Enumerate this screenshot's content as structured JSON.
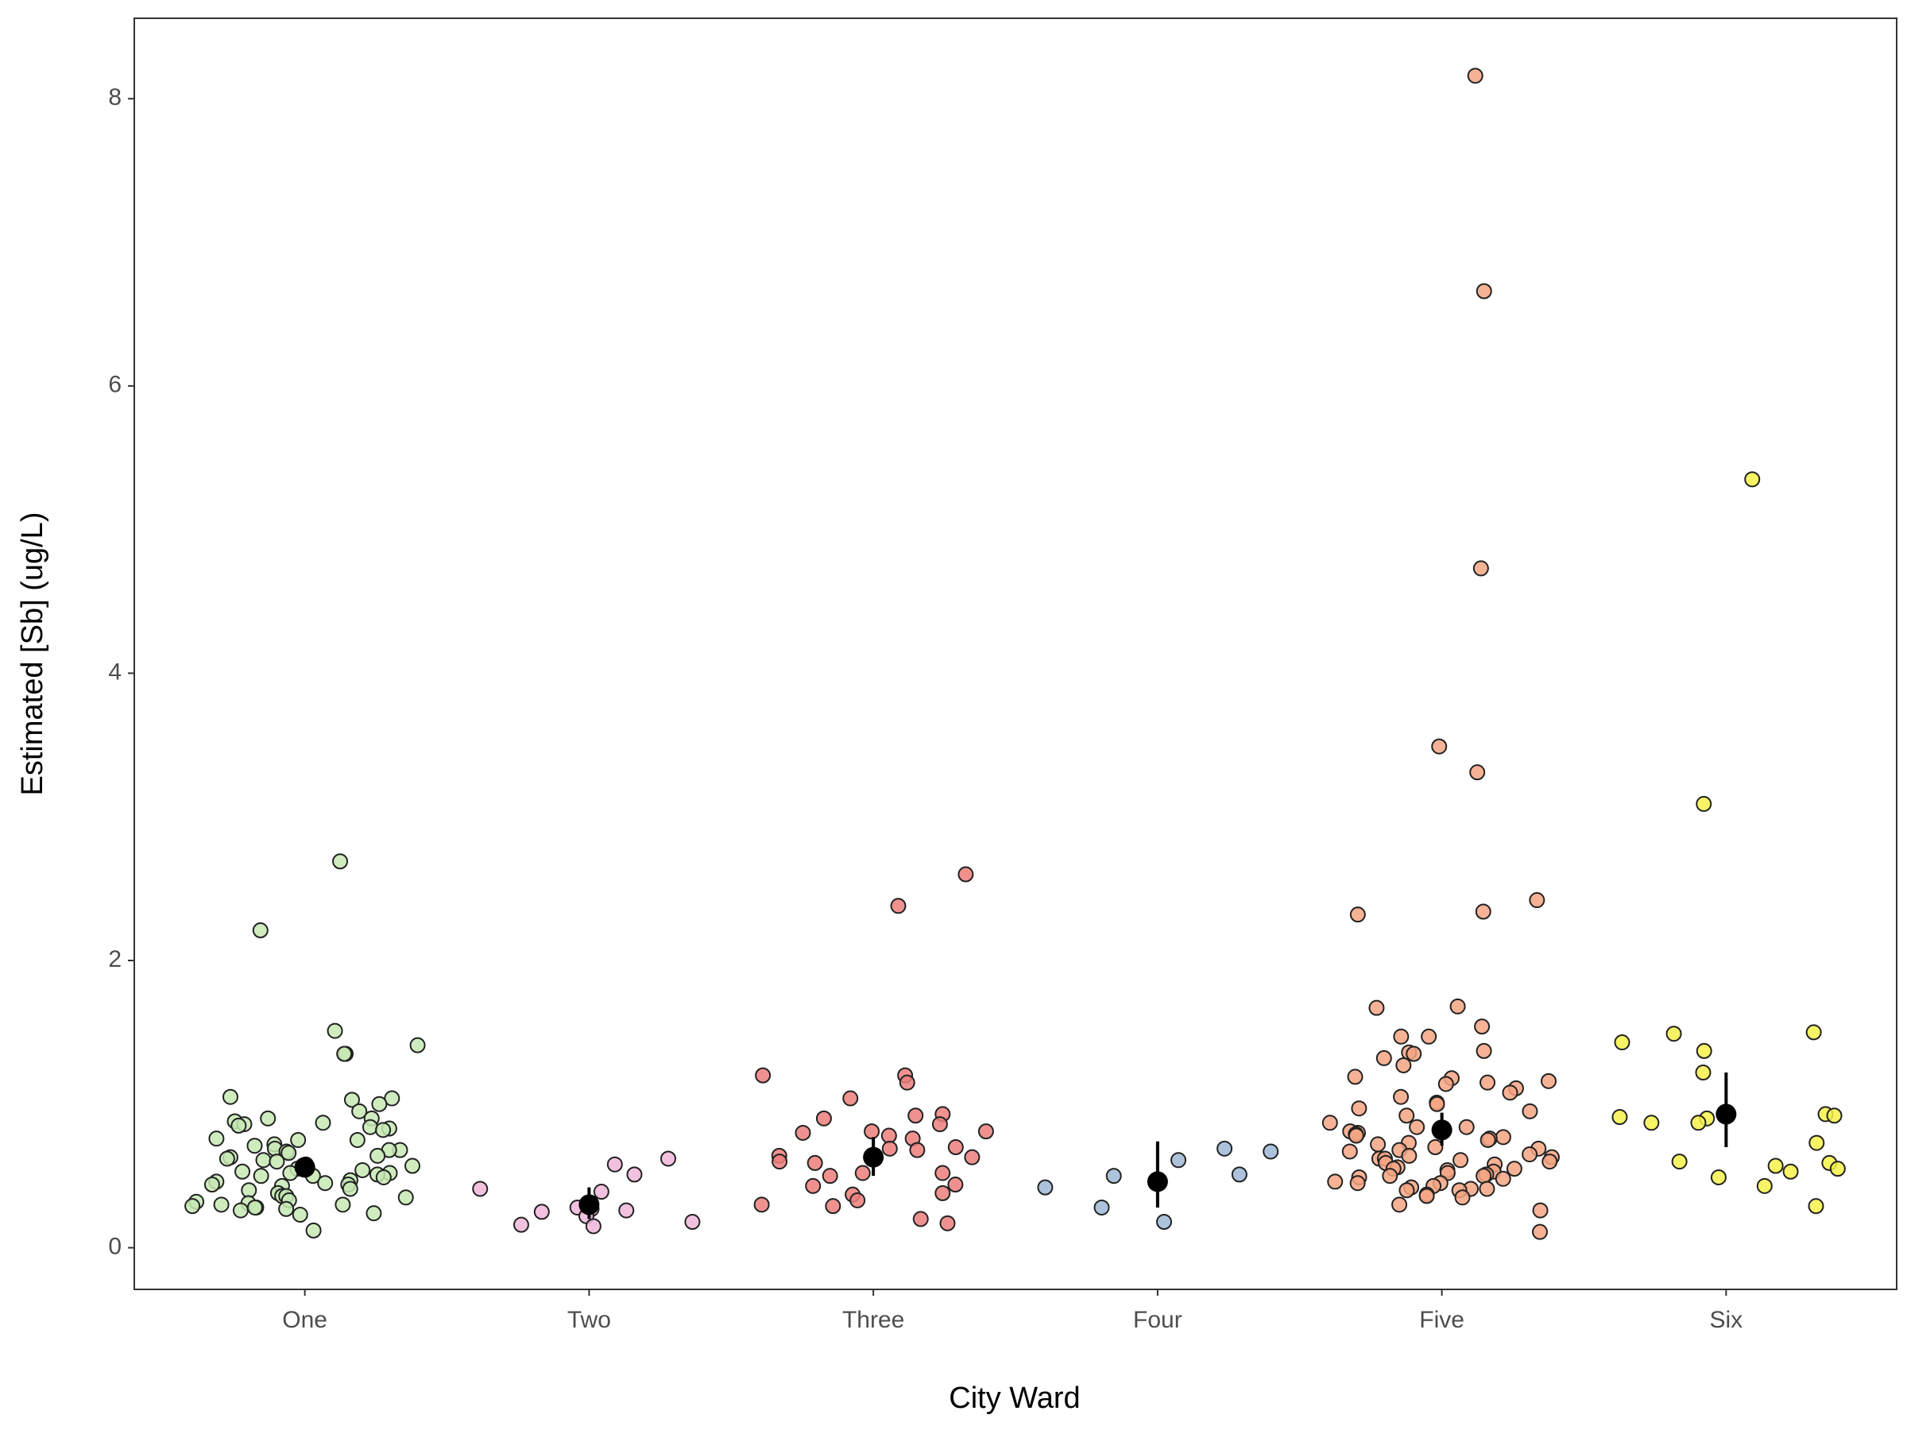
{
  "chart_data": {
    "type": "strip",
    "x_label": "City Ward",
    "y_label": "Estimated [Sb] (ug/L)",
    "categories": [
      "One",
      "Two",
      "Three",
      "Four",
      "Five",
      "Six"
    ],
    "colors": [
      "#c7e9b4",
      "#f1b6da",
      "#ec7f7b",
      "#9fb9d6",
      "#f4a582",
      "#f6f24a"
    ],
    "points": [
      [
        2.69,
        2.21,
        1.51,
        1.41,
        1.35,
        1.35,
        1.05,
        1.04,
        1.03,
        1.0,
        0.95,
        0.9,
        0.9,
        0.88,
        0.87,
        0.86,
        0.85,
        0.84,
        0.83,
        0.82,
        0.76,
        0.75,
        0.75,
        0.72,
        0.71,
        0.69,
        0.68,
        0.68,
        0.67,
        0.66,
        0.64,
        0.63,
        0.62,
        0.61,
        0.6,
        0.58,
        0.57,
        0.55,
        0.54,
        0.53,
        0.52,
        0.52,
        0.51,
        0.5,
        0.5,
        0.49,
        0.47,
        0.46,
        0.45,
        0.44,
        0.44,
        0.43,
        0.41,
        0.4,
        0.38,
        0.36,
        0.36,
        0.35,
        0.33,
        0.32,
        0.31,
        0.3,
        0.3,
        0.29,
        0.28,
        0.28,
        0.27,
        0.26,
        0.24,
        0.23,
        0.12
      ],
      [
        0.62,
        0.58,
        0.51,
        0.41,
        0.39,
        0.28,
        0.27,
        0.26,
        0.25,
        0.22,
        0.18,
        0.16,
        0.15
      ],
      [
        2.6,
        2.38,
        1.2,
        1.2,
        1.15,
        1.04,
        0.93,
        0.92,
        0.9,
        0.86,
        0.81,
        0.81,
        0.8,
        0.78,
        0.76,
        0.7,
        0.69,
        0.68,
        0.64,
        0.63,
        0.6,
        0.59,
        0.52,
        0.52,
        0.5,
        0.44,
        0.43,
        0.38,
        0.37,
        0.33,
        0.3,
        0.29,
        0.2,
        0.17
      ],
      [
        0.69,
        0.67,
        0.61,
        0.51,
        0.5,
        0.42,
        0.28,
        0.18
      ],
      [
        8.16,
        6.66,
        4.73,
        3.49,
        3.31,
        2.42,
        2.34,
        2.32,
        1.68,
        1.67,
        1.54,
        1.47,
        1.47,
        1.37,
        1.36,
        1.35,
        1.32,
        1.27,
        1.19,
        1.18,
        1.16,
        1.15,
        1.14,
        1.11,
        1.08,
        1.05,
        1.01,
        1.0,
        0.97,
        0.95,
        0.92,
        0.87,
        0.84,
        0.84,
        0.81,
        0.8,
        0.79,
        0.78,
        0.77,
        0.76,
        0.75,
        0.73,
        0.72,
        0.7,
        0.69,
        0.68,
        0.67,
        0.65,
        0.64,
        0.63,
        0.62,
        0.62,
        0.61,
        0.6,
        0.59,
        0.58,
        0.56,
        0.55,
        0.55,
        0.54,
        0.53,
        0.52,
        0.51,
        0.5,
        0.5,
        0.49,
        0.48,
        0.46,
        0.45,
        0.45,
        0.43,
        0.42,
        0.41,
        0.41,
        0.4,
        0.4,
        0.37,
        0.36,
        0.35,
        0.3,
        0.26,
        0.11
      ],
      [
        5.35,
        3.09,
        1.5,
        1.49,
        1.43,
        1.37,
        1.22,
        0.93,
        0.92,
        0.91,
        0.9,
        0.87,
        0.87,
        0.73,
        0.6,
        0.59,
        0.57,
        0.55,
        0.53,
        0.49,
        0.43,
        0.29
      ]
    ],
    "means": [
      0.56,
      0.3,
      0.63,
      0.46,
      0.82,
      0.93
    ],
    "error_low": [
      0.49,
      0.2,
      0.5,
      0.28,
      0.71,
      0.7
    ],
    "error_high": [
      0.63,
      0.42,
      0.77,
      0.74,
      0.94,
      1.22
    ],
    "mean_color": "#000000",
    "ylim": [
      -0.29,
      8.56
    ],
    "yticks": [
      0,
      2,
      4,
      6,
      8
    ]
  }
}
